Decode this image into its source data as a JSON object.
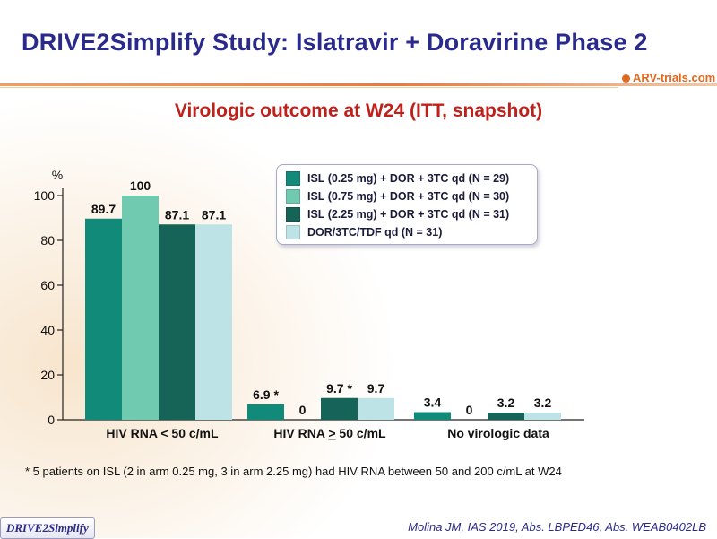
{
  "header": {
    "title": "DRIVE2Simplify Study: Islatravir + Doravirine Phase 2",
    "logo_text": "ARV-trials.com",
    "brand_color": "#2a2a8c",
    "accent_color": "#e87a3a"
  },
  "chart_data": {
    "type": "bar",
    "title": "Virologic outcome at W24 (ITT, snapshot)",
    "ylabel": "%",
    "ylim": [
      0,
      100
    ],
    "yticks": [
      0,
      20,
      40,
      60,
      80,
      100
    ],
    "categories": [
      "HIV RNA < 50 c/mL",
      "HIV RNA > 50 c/mL",
      "No virologic data"
    ],
    "category_underline": [
      [],
      [
        "≥"
      ],
      []
    ],
    "grid": false,
    "legend_position": "top-right",
    "series": [
      {
        "name": "ISL (0.25 mg) + DOR + 3TC qd (N = 29)",
        "color": "#128a7a",
        "values": [
          89.7,
          6.9,
          3.4
        ],
        "labels": [
          "89.7",
          "6.9 *",
          "3.4"
        ]
      },
      {
        "name": "ISL (0.75 mg) + DOR + 3TC qd (N = 30)",
        "color": "#6fcab0",
        "values": [
          100,
          0,
          0
        ],
        "labels": [
          "100",
          "0",
          "0"
        ]
      },
      {
        "name": "ISL (2.25 mg) + DOR + 3TC qd (N = 31)",
        "color": "#166358",
        "values": [
          87.1,
          9.7,
          3.2
        ],
        "labels": [
          "87.1",
          "9.7 *",
          "3.2"
        ]
      },
      {
        "name": "DOR/3TC/TDF qd (N = 31)",
        "color": "#bde3e6",
        "values": [
          87.1,
          9.7,
          3.2
        ],
        "labels": [
          "87.1",
          "9.7",
          "3.2"
        ]
      }
    ]
  },
  "footer": {
    "footnote": "* 5 patients on ISL (2 in arm 0.25 mg, 3 in arm 2.25 mg) had HIV RNA between 50 and 200 c/mL at W24",
    "study_tag": "DRIVE2Simplify",
    "citation": "Molina JM, IAS 2019, Abs. LBPED46, Abs. WEAB0402LB"
  }
}
